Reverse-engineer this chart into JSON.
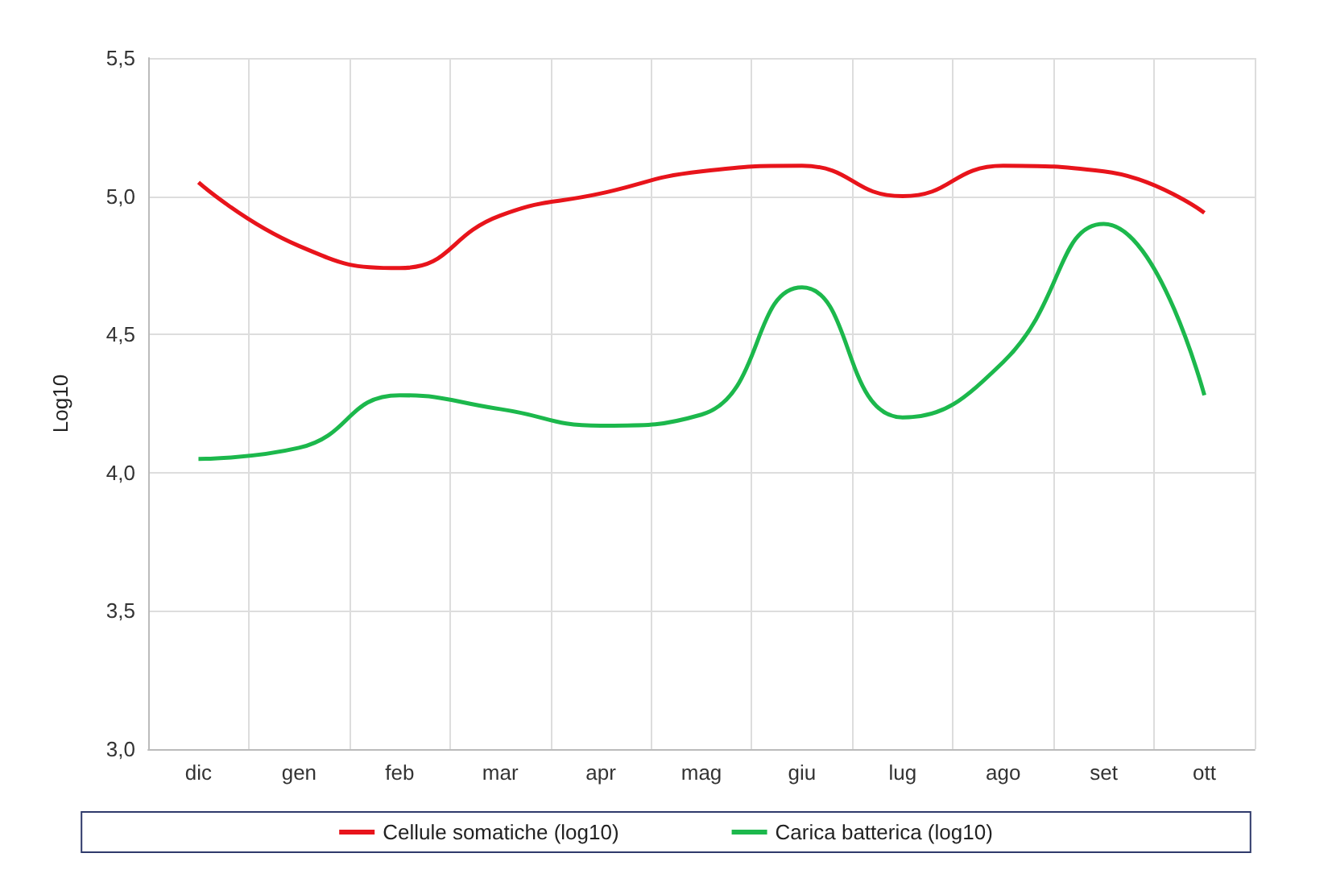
{
  "chart_data": {
    "type": "line",
    "ylabel": "Log10",
    "categories": [
      "dic",
      "gen",
      "feb",
      "mar",
      "apr",
      "mag",
      "giu",
      "lug",
      "ago",
      "set",
      "ott"
    ],
    "series": [
      {
        "name": "Cellule somatiche (log10)",
        "color": "#e8141b",
        "values": [
          5.05,
          4.82,
          4.74,
          4.93,
          5.01,
          5.09,
          5.11,
          5.0,
          5.11,
          5.09,
          4.94
        ]
      },
      {
        "name": "Carica batterica (log10)",
        "color": "#1cb84c",
        "values": [
          4.05,
          4.09,
          4.28,
          4.23,
          4.17,
          4.21,
          4.67,
          4.2,
          4.4,
          4.9,
          4.28
        ]
      }
    ],
    "ylim": [
      3.0,
      5.5
    ],
    "yticks": [
      {
        "value": 3.0,
        "label": "3,0"
      },
      {
        "value": 3.5,
        "label": "3,5"
      },
      {
        "value": 4.0,
        "label": "4,0"
      },
      {
        "value": 4.5,
        "label": "4,5"
      },
      {
        "value": 5.0,
        "label": "5,0"
      },
      {
        "value": 5.5,
        "label": "5,5"
      }
    ],
    "grid": true,
    "legend": "bottom",
    "marker": "none",
    "line_style": "solid"
  }
}
